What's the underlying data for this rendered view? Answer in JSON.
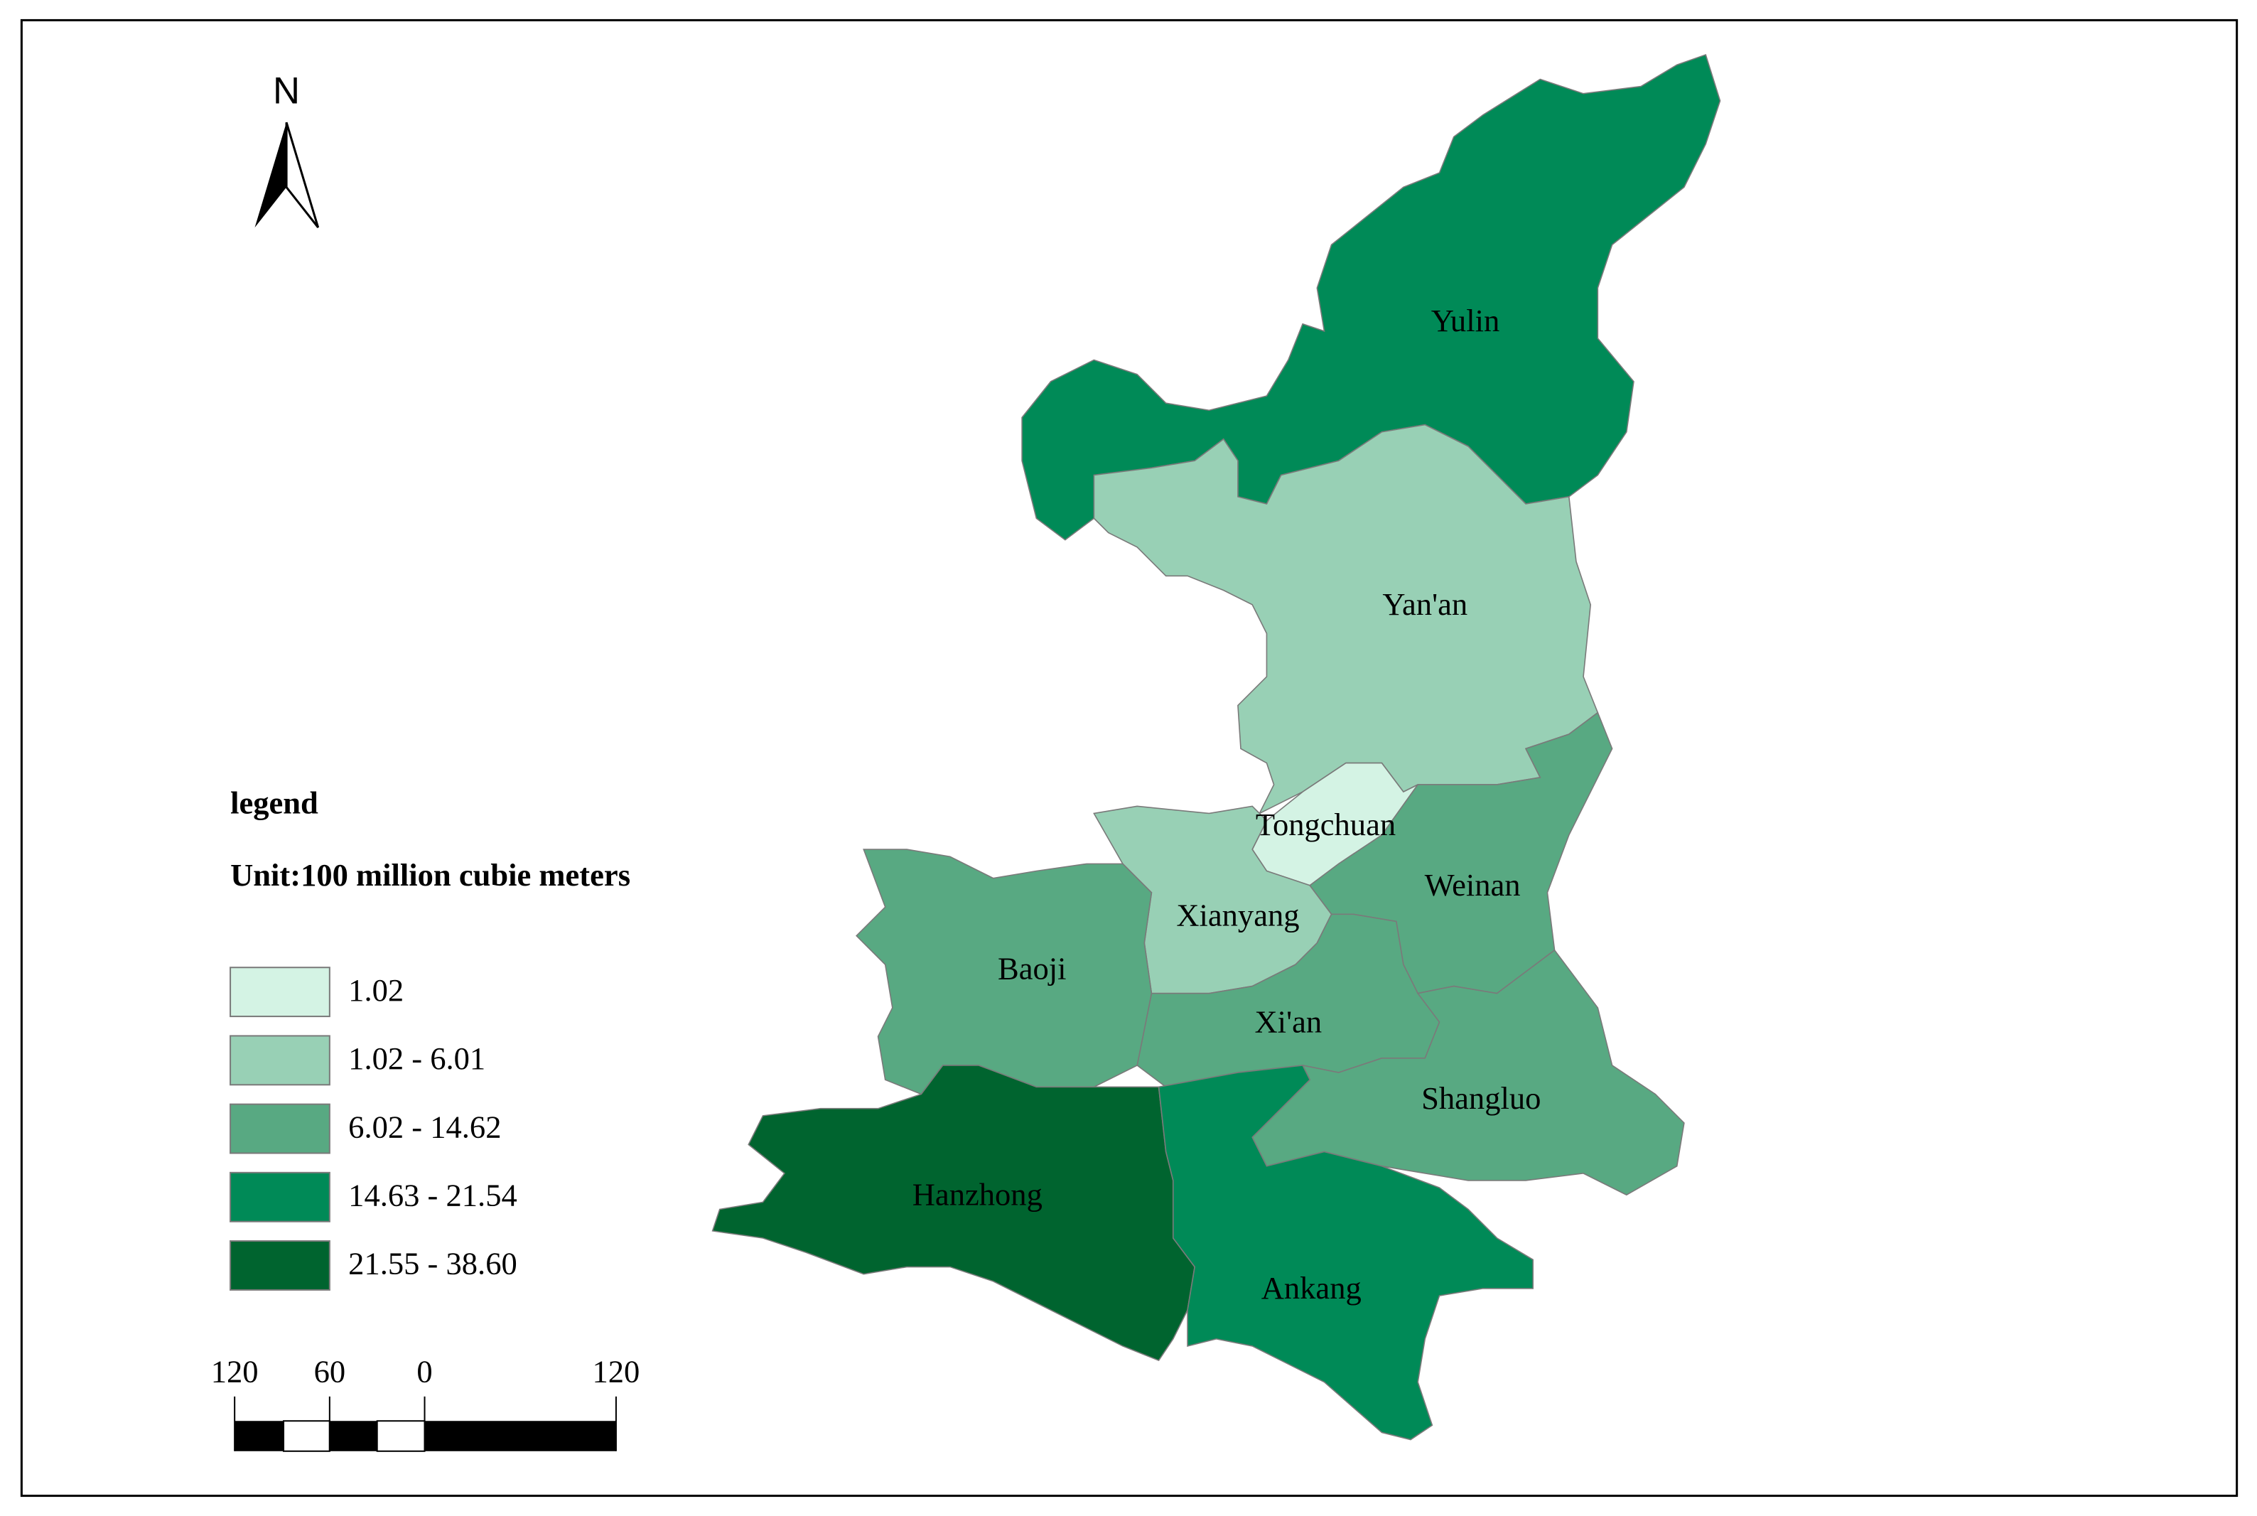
{
  "map": {
    "north_label": "N",
    "legend": {
      "title": "legend",
      "unit": "Unit:100 million cubie meters",
      "classes": [
        {
          "label": "1.02",
          "color": "#d4f3e4"
        },
        {
          "label": "1.02 - 6.01",
          "color": "#98d0b5"
        },
        {
          "label": "6.02 - 14.62",
          "color": "#58a982"
        },
        {
          "label": "14.63 - 21.54",
          "color": "#008a57"
        },
        {
          "label": "21.55 - 38.60",
          "color": "#00642f"
        }
      ]
    },
    "scale_bar": {
      "labels": [
        "120",
        "60",
        "0",
        "120"
      ]
    },
    "regions": [
      {
        "name": "Yulin",
        "class": 3
      },
      {
        "name": "Yan'an",
        "class": 1
      },
      {
        "name": "Tongchuan",
        "class": 0
      },
      {
        "name": "Xianyang",
        "class": 1
      },
      {
        "name": "Weinan",
        "class": 2
      },
      {
        "name": "Xi'an",
        "class": 2
      },
      {
        "name": "Shangluo",
        "class": 2
      },
      {
        "name": "Baoji",
        "class": 2
      },
      {
        "name": "Hanzhong",
        "class": 4
      },
      {
        "name": "Ankang",
        "class": 3
      }
    ]
  }
}
